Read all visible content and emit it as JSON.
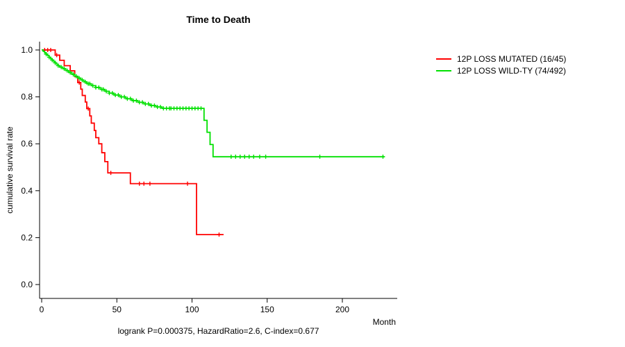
{
  "chart_data": {
    "type": "line",
    "subtype": "kaplan-meier-step",
    "title": "Time to Death",
    "xlabel": "Month",
    "ylabel": "cumulative survival rate",
    "annotation": "logrank P=0.000375, HazardRatio=2.6, C-index=0.677",
    "xlim": [
      0,
      235
    ],
    "ylim": [
      0.0,
      1.0
    ],
    "x_ticks": [
      0,
      50,
      100,
      150,
      200
    ],
    "y_ticks": [
      0.0,
      0.2,
      0.4,
      0.6,
      0.8,
      1.0
    ],
    "grid": false,
    "legend_position": "top-right-outside",
    "series": [
      {
        "name": "12P LOSS MUTATED (16/45)",
        "color": "#ff0000",
        "steps": [
          [
            0,
            1.0
          ],
          [
            9,
            0.978
          ],
          [
            12,
            0.956
          ],
          [
            15,
            0.933
          ],
          [
            19,
            0.911
          ],
          [
            22,
            0.886
          ],
          [
            24,
            0.861
          ],
          [
            26,
            0.833
          ],
          [
            27,
            0.806
          ],
          [
            29,
            0.778
          ],
          [
            30,
            0.75
          ],
          [
            32,
            0.719
          ],
          [
            33,
            0.688
          ],
          [
            35,
            0.657
          ],
          [
            36,
            0.626
          ],
          [
            38,
            0.6
          ],
          [
            40,
            0.562
          ],
          [
            42,
            0.524
          ],
          [
            44,
            0.476
          ],
          [
            59,
            0.43
          ],
          [
            103,
            0.213
          ],
          [
            121,
            0.213
          ]
        ],
        "censors": [
          2,
          4,
          6,
          10,
          25,
          31,
          46,
          65,
          68,
          72,
          97,
          118
        ]
      },
      {
        "name": "12P LOSS WILD-TY (74/492)",
        "color": "#00e000",
        "steps": [
          [
            0,
            1.0
          ],
          [
            1,
            0.994
          ],
          [
            2,
            0.988
          ],
          [
            3,
            0.982
          ],
          [
            4,
            0.976
          ],
          [
            5,
            0.969
          ],
          [
            6,
            0.963
          ],
          [
            7,
            0.957
          ],
          [
            8,
            0.951
          ],
          [
            9,
            0.945
          ],
          [
            10,
            0.939
          ],
          [
            11,
            0.933
          ],
          [
            12,
            0.927
          ],
          [
            14,
            0.92
          ],
          [
            16,
            0.912
          ],
          [
            18,
            0.904
          ],
          [
            20,
            0.896
          ],
          [
            22,
            0.888
          ],
          [
            24,
            0.88
          ],
          [
            26,
            0.872
          ],
          [
            28,
            0.864
          ],
          [
            30,
            0.856
          ],
          [
            33,
            0.848
          ],
          [
            36,
            0.84
          ],
          [
            39,
            0.832
          ],
          [
            42,
            0.824
          ],
          [
            45,
            0.816
          ],
          [
            48,
            0.808
          ],
          [
            52,
            0.8
          ],
          [
            56,
            0.792
          ],
          [
            60,
            0.784
          ],
          [
            64,
            0.777
          ],
          [
            68,
            0.77
          ],
          [
            72,
            0.763
          ],
          [
            76,
            0.757
          ],
          [
            80,
            0.751
          ],
          [
            108,
            0.7
          ],
          [
            110,
            0.649
          ],
          [
            112,
            0.597
          ],
          [
            114,
            0.545
          ],
          [
            228,
            0.545
          ]
        ],
        "censors": [
          3,
          5,
          7,
          9,
          11,
          13,
          15,
          17,
          19,
          21,
          23,
          25,
          27,
          29,
          31,
          32,
          34,
          36,
          38,
          40,
          41,
          43,
          45,
          47,
          49,
          51,
          53,
          55,
          57,
          59,
          61,
          63,
          65,
          67,
          69,
          71,
          73,
          75,
          77,
          79,
          81,
          83,
          85,
          86,
          88,
          90,
          92,
          94,
          96,
          98,
          100,
          102,
          104,
          106,
          126,
          129,
          132,
          135,
          138,
          141,
          145,
          149,
          185,
          227
        ]
      }
    ]
  }
}
